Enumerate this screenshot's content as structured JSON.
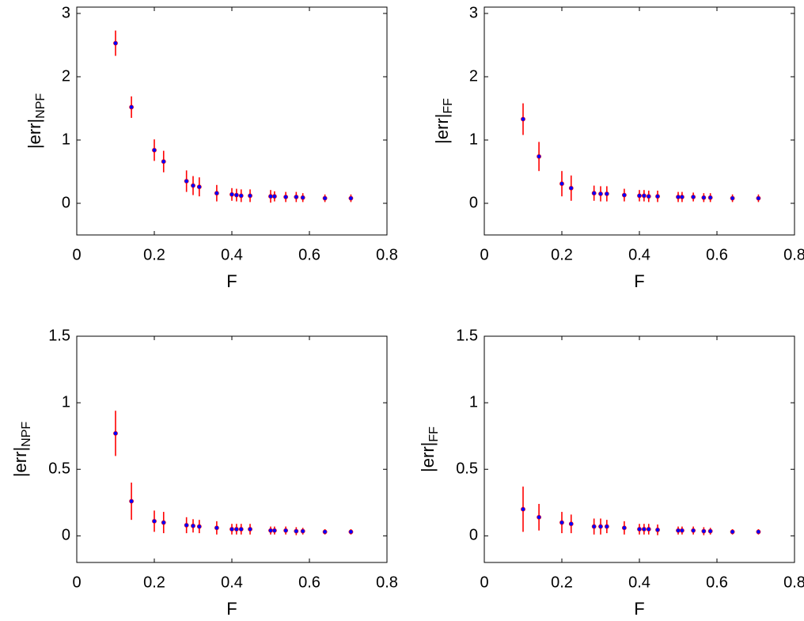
{
  "chart_data": [
    {
      "type": "errorbar",
      "xlabel": "F",
      "ylabel": {
        "main": "|err|",
        "sub": "NPF"
      },
      "x": [
        0.1,
        0.141,
        0.2,
        0.224,
        0.283,
        0.3,
        0.316,
        0.361,
        0.4,
        0.412,
        0.424,
        0.447,
        0.5,
        0.51,
        0.539,
        0.566,
        0.583,
        0.64,
        0.707
      ],
      "values": [
        2.53,
        1.52,
        0.84,
        0.66,
        0.35,
        0.28,
        0.26,
        0.16,
        0.14,
        0.13,
        0.12,
        0.12,
        0.11,
        0.11,
        0.1,
        0.1,
        0.09,
        0.08,
        0.08
      ],
      "errors": [
        0.2,
        0.17,
        0.17,
        0.17,
        0.17,
        0.15,
        0.15,
        0.13,
        0.1,
        0.1,
        0.1,
        0.1,
        0.1,
        0.08,
        0.08,
        0.08,
        0.07,
        0.06,
        0.06
      ],
      "color": "#0000ff",
      "error_color": "#ff0000",
      "xlim": [
        0,
        0.8
      ],
      "xticks": [
        0,
        0.2,
        0.4,
        0.6,
        0.8
      ],
      "ylim": [
        -0.5,
        3.1
      ],
      "yticks": [
        0,
        1,
        2,
        3
      ]
    },
    {
      "type": "errorbar",
      "xlabel": "F",
      "ylabel": {
        "main": "|err|",
        "sub": "FF"
      },
      "x": [
        0.1,
        0.141,
        0.2,
        0.224,
        0.283,
        0.3,
        0.316,
        0.361,
        0.4,
        0.412,
        0.424,
        0.447,
        0.5,
        0.51,
        0.539,
        0.566,
        0.583,
        0.64,
        0.707
      ],
      "values": [
        1.33,
        0.74,
        0.31,
        0.24,
        0.16,
        0.15,
        0.15,
        0.13,
        0.12,
        0.12,
        0.11,
        0.11,
        0.1,
        0.1,
        0.1,
        0.09,
        0.09,
        0.08,
        0.08
      ],
      "errors": [
        0.25,
        0.23,
        0.2,
        0.2,
        0.12,
        0.12,
        0.12,
        0.1,
        0.09,
        0.09,
        0.09,
        0.09,
        0.08,
        0.08,
        0.07,
        0.07,
        0.07,
        0.06,
        0.06
      ],
      "color": "#0000ff",
      "error_color": "#ff0000",
      "xlim": [
        0,
        0.8
      ],
      "xticks": [
        0,
        0.2,
        0.4,
        0.6,
        0.8
      ],
      "ylim": [
        -0.5,
        3.1
      ],
      "yticks": [
        0,
        1,
        2,
        3
      ]
    },
    {
      "type": "errorbar",
      "xlabel": "F",
      "ylabel": {
        "main": "|err|",
        "sub": "NPF"
      },
      "x": [
        0.1,
        0.141,
        0.2,
        0.224,
        0.283,
        0.3,
        0.316,
        0.361,
        0.4,
        0.412,
        0.424,
        0.447,
        0.5,
        0.51,
        0.539,
        0.566,
        0.583,
        0.64,
        0.707
      ],
      "values": [
        0.77,
        0.26,
        0.11,
        0.1,
        0.08,
        0.075,
        0.07,
        0.06,
        0.05,
        0.05,
        0.05,
        0.05,
        0.04,
        0.04,
        0.04,
        0.035,
        0.035,
        0.03,
        0.03
      ],
      "errors": [
        0.17,
        0.14,
        0.08,
        0.08,
        0.06,
        0.05,
        0.05,
        0.05,
        0.04,
        0.04,
        0.04,
        0.04,
        0.03,
        0.03,
        0.03,
        0.03,
        0.025,
        0.02,
        0.02
      ],
      "color": "#0000ff",
      "error_color": "#ff0000",
      "xlim": [
        0,
        0.8
      ],
      "xticks": [
        0,
        0.2,
        0.4,
        0.6,
        0.8
      ],
      "ylim": [
        -0.2,
        1.5
      ],
      "yticks": [
        0,
        0.5,
        1,
        1.5
      ]
    },
    {
      "type": "errorbar",
      "xlabel": "F",
      "ylabel": {
        "main": "|err|",
        "sub": "FF"
      },
      "x": [
        0.1,
        0.141,
        0.2,
        0.224,
        0.283,
        0.3,
        0.316,
        0.361,
        0.4,
        0.412,
        0.424,
        0.447,
        0.5,
        0.51,
        0.539,
        0.566,
        0.583,
        0.64,
        0.707
      ],
      "values": [
        0.2,
        0.14,
        0.1,
        0.09,
        0.07,
        0.07,
        0.07,
        0.06,
        0.05,
        0.05,
        0.05,
        0.045,
        0.04,
        0.04,
        0.04,
        0.035,
        0.035,
        0.03,
        0.03
      ],
      "errors": [
        0.17,
        0.1,
        0.08,
        0.07,
        0.06,
        0.06,
        0.05,
        0.05,
        0.04,
        0.04,
        0.04,
        0.04,
        0.03,
        0.03,
        0.03,
        0.03,
        0.025,
        0.02,
        0.02
      ],
      "color": "#0000ff",
      "error_color": "#ff0000",
      "xlim": [
        0,
        0.8
      ],
      "xticks": [
        0,
        0.2,
        0.4,
        0.6,
        0.8
      ],
      "ylim": [
        -0.2,
        1.5
      ],
      "yticks": [
        0,
        0.5,
        1,
        1.5
      ]
    }
  ]
}
